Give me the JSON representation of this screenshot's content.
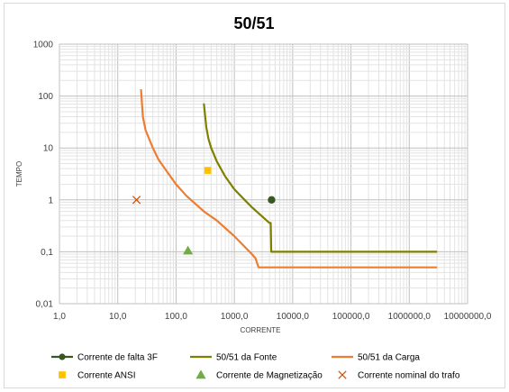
{
  "chart_data": {
    "type": "scatter",
    "title": "50/51",
    "xlabel": "CORRENTE",
    "ylabel": "TEMPO",
    "x_scale": "log",
    "y_scale": "log",
    "xlim": [
      1,
      10000000
    ],
    "ylim": [
      0.01,
      1000
    ],
    "grid": true,
    "legend_position": "bottom",
    "x_tick_labels": [
      "1,0",
      "10,0",
      "100,0",
      "1000,0",
      "10000,0",
      "100000,0",
      "1000000,0",
      "10000000,0"
    ],
    "y_tick_labels": [
      "0,01",
      "0,1",
      "1",
      "10",
      "100",
      "1000"
    ],
    "series": [
      {
        "name": "Corrente de falta 3F",
        "style": "point-line",
        "marker": "circle",
        "color": "#385723",
        "points": [
          [
            4350,
            1.0
          ]
        ]
      },
      {
        "name": "50/51 da Fonte",
        "style": "line",
        "color": "#7f7f00",
        "points": [
          [
            300,
            72
          ],
          [
            330,
            25
          ],
          [
            360,
            15
          ],
          [
            400,
            10
          ],
          [
            500,
            5.5
          ],
          [
            700,
            2.8
          ],
          [
            1000,
            1.6
          ],
          [
            1500,
            1.0
          ],
          [
            2000,
            0.72
          ],
          [
            3000,
            0.48
          ],
          [
            4000,
            0.36
          ],
          [
            4200,
            0.36
          ],
          [
            4300,
            0.1
          ],
          [
            10000,
            0.1
          ],
          [
            100000,
            0.1
          ],
          [
            1000000,
            0.1
          ],
          [
            3000000,
            0.1
          ]
        ]
      },
      {
        "name": "50/51 da Carga",
        "style": "line",
        "color": "#ed7d31",
        "points": [
          [
            25,
            135
          ],
          [
            27,
            40
          ],
          [
            30,
            22
          ],
          [
            40,
            10
          ],
          [
            50,
            6
          ],
          [
            70,
            3.5
          ],
          [
            100,
            2.0
          ],
          [
            150,
            1.2
          ],
          [
            200,
            0.9
          ],
          [
            300,
            0.6
          ],
          [
            500,
            0.4
          ],
          [
            1000,
            0.2
          ],
          [
            2000,
            0.09
          ],
          [
            2300,
            0.075
          ],
          [
            2600,
            0.05
          ],
          [
            10000,
            0.05
          ],
          [
            100000,
            0.05
          ],
          [
            1000000,
            0.05
          ],
          [
            3000000,
            0.05
          ]
        ]
      },
      {
        "name": "Corrente ANSI",
        "style": "marker",
        "marker": "square",
        "color": "#ffc000",
        "points": [
          [
            350,
            3.7
          ]
        ]
      },
      {
        "name": "Corrente de Magnetização",
        "style": "marker",
        "marker": "triangle",
        "color": "#70ad47",
        "points": [
          [
            160,
            0.105
          ]
        ]
      },
      {
        "name": "Corrente nominal do trafo",
        "style": "marker",
        "marker": "x",
        "color": "#c55a11",
        "points": [
          [
            21,
            1.0
          ]
        ]
      }
    ]
  }
}
